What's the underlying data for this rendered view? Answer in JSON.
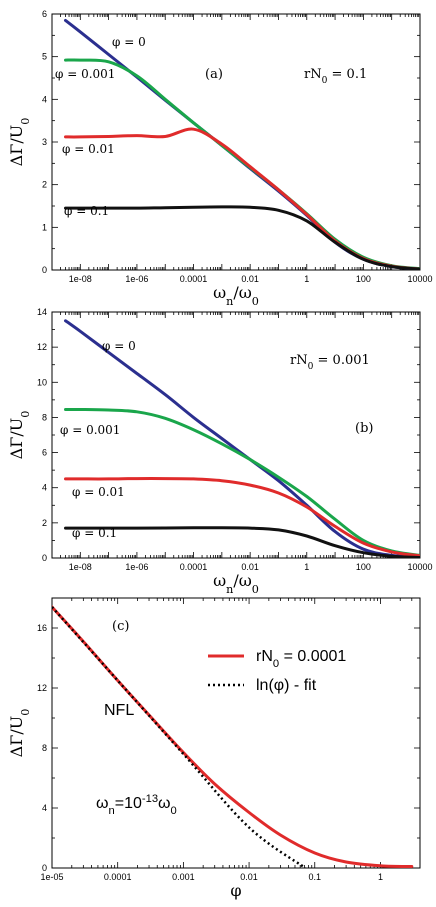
{
  "chart_data": [
    {
      "type": "line",
      "panel_label": "(a)",
      "annotation": "rN0 = 0.1",
      "xlabel": "ωn/ω0",
      "ylabel": "ΔΓ/U0",
      "xscale": "log",
      "xlim": [
        1e-09,
        10000
      ],
      "ylim": [
        0,
        6
      ],
      "xticks": [
        1e-08,
        1e-06,
        0.0001,
        0.01,
        1,
        100,
        10000
      ],
      "xtick_labels": [
        "1e-08",
        "1e-06",
        "0.0001",
        "0.01",
        "1",
        "100",
        "10000"
      ],
      "yticks": [
        0,
        1,
        2,
        3,
        4,
        5,
        6
      ],
      "series": [
        {
          "name": "φ = 0",
          "color": "#2b2f8f",
          "x": [
            3e-09,
            1e-08,
            1e-07,
            1e-06,
            1e-05,
            0.0001,
            0.001,
            0.01,
            0.1,
            1,
            10,
            100,
            1000,
            10000
          ],
          "y": [
            5.85,
            5.58,
            5.05,
            4.52,
            3.98,
            3.45,
            2.92,
            2.38,
            1.85,
            1.28,
            0.65,
            0.25,
            0.08,
            0.02
          ]
        },
        {
          "name": "φ = 0.001",
          "color": "#1aa64b",
          "x": [
            3e-09,
            1e-08,
            1e-07,
            1e-06,
            1e-05,
            0.0001,
            0.001,
            0.01,
            0.1,
            1,
            10,
            100,
            1000,
            10000
          ],
          "y": [
            4.92,
            4.92,
            4.88,
            4.55,
            4.0,
            3.45,
            2.92,
            2.4,
            1.88,
            1.32,
            0.72,
            0.3,
            0.1,
            0.03
          ]
        },
        {
          "name": "φ = 0.01",
          "color": "#e02b2b",
          "x": [
            3e-09,
            1e-08,
            1e-07,
            1e-06,
            1e-05,
            0.0001,
            0.001,
            0.01,
            0.1,
            1,
            10,
            100,
            1000,
            10000
          ],
          "y": [
            3.12,
            3.12,
            3.13,
            3.15,
            3.13,
            3.3,
            2.95,
            2.42,
            1.88,
            1.3,
            0.68,
            0.27,
            0.09,
            0.02
          ]
        },
        {
          "name": "φ = 0.1",
          "color": "#111111",
          "x": [
            3e-09,
            1e-08,
            1e-07,
            1e-06,
            1e-05,
            0.0001,
            0.001,
            0.01,
            0.1,
            1,
            10,
            100,
            1000,
            10000
          ],
          "y": [
            1.45,
            1.45,
            1.45,
            1.45,
            1.46,
            1.47,
            1.48,
            1.47,
            1.4,
            1.15,
            0.65,
            0.25,
            0.08,
            0.02
          ]
        }
      ]
    },
    {
      "type": "line",
      "panel_label": "(b)",
      "annotation": "rN0 = 0.001",
      "xlabel": "ωn/ω0",
      "ylabel": "ΔΓ/U0",
      "xscale": "log",
      "xlim": [
        1e-09,
        10000
      ],
      "ylim": [
        0,
        14
      ],
      "xticks": [
        1e-08,
        1e-06,
        0.0001,
        0.01,
        1,
        100,
        10000
      ],
      "xtick_labels": [
        "1e-08",
        "1e-06",
        "0.0001",
        "0.01",
        "1",
        "100",
        "10000"
      ],
      "yticks": [
        0,
        2,
        4,
        6,
        8,
        10,
        12,
        14
      ],
      "series": [
        {
          "name": "φ = 0",
          "color": "#2b2f8f",
          "x": [
            3e-09,
            1e-08,
            1e-07,
            1e-06,
            1e-05,
            0.0001,
            0.001,
            0.01,
            0.1,
            1,
            10,
            100,
            1000,
            10000
          ],
          "y": [
            13.5,
            12.9,
            11.7,
            10.5,
            9.3,
            8.0,
            6.8,
            5.6,
            4.4,
            3.0,
            1.5,
            0.5,
            0.15,
            0.05
          ]
        },
        {
          "name": "φ = 0.001",
          "color": "#1aa64b",
          "x": [
            3e-09,
            1e-08,
            1e-07,
            1e-06,
            1e-05,
            0.0001,
            0.001,
            0.01,
            0.1,
            1,
            10,
            100,
            1000,
            10000
          ],
          "y": [
            8.45,
            8.45,
            8.42,
            8.32,
            7.95,
            7.3,
            6.5,
            5.6,
            4.6,
            3.5,
            2.2,
            1.0,
            0.4,
            0.15
          ]
        },
        {
          "name": "φ = 0.01",
          "color": "#e02b2b",
          "x": [
            3e-09,
            1e-08,
            1e-07,
            1e-06,
            1e-05,
            0.0001,
            0.001,
            0.01,
            0.1,
            1,
            10,
            100,
            1000,
            10000
          ],
          "y": [
            4.5,
            4.5,
            4.5,
            4.52,
            4.52,
            4.5,
            4.4,
            4.15,
            3.7,
            2.9,
            1.8,
            0.85,
            0.35,
            0.12
          ]
        },
        {
          "name": "φ = 0.1",
          "color": "#111111",
          "x": [
            3e-09,
            1e-08,
            1e-07,
            1e-06,
            1e-05,
            0.0001,
            0.001,
            0.01,
            0.1,
            1,
            10,
            100,
            1000,
            10000
          ],
          "y": [
            1.7,
            1.7,
            1.7,
            1.7,
            1.71,
            1.72,
            1.72,
            1.7,
            1.6,
            1.25,
            0.7,
            0.3,
            0.1,
            0.03
          ]
        }
      ]
    },
    {
      "type": "line",
      "panel_label": "(c)",
      "annotation": "NFL",
      "condition": "ωn=10-13ω0",
      "xlabel": "φ",
      "ylabel": "ΔΓ/U0",
      "xscale": "log",
      "xlim": [
        1e-05,
        4
      ],
      "ylim": [
        0,
        18
      ],
      "xticks": [
        1e-05,
        0.0001,
        0.001,
        0.01,
        0.1,
        1
      ],
      "xtick_labels": [
        "1e-05",
        "0.0001",
        "0.001",
        "0.01",
        "0.1",
        "1"
      ],
      "yticks": [
        0,
        4,
        8,
        12,
        16
      ],
      "legend_position": "top-right",
      "series": [
        {
          "name": "rN0 = 0.0001",
          "color": "#e02b2b",
          "style": "solid",
          "x": [
            1e-05,
            3e-05,
            0.0001,
            0.0003,
            0.001,
            0.003,
            0.01,
            0.03,
            0.1,
            0.3,
            1,
            3
          ],
          "y": [
            17.4,
            15.1,
            12.5,
            10.2,
            7.7,
            5.6,
            3.7,
            2.2,
            1.0,
            0.4,
            0.15,
            0.1
          ]
        },
        {
          "name": "ln(φ) - fit",
          "color": "#000000",
          "style": "dotted",
          "x": [
            1e-05,
            0.0001,
            0.001,
            0.01,
            0.072
          ],
          "y": [
            17.4,
            12.5,
            7.6,
            2.7,
            0
          ]
        }
      ]
    }
  ]
}
